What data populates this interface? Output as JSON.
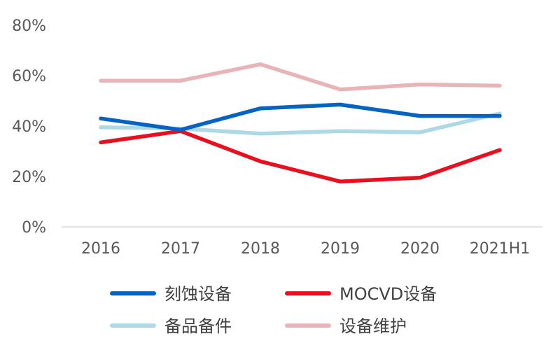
{
  "chart_data": {
    "type": "line",
    "categories": [
      "2016",
      "2017",
      "2018",
      "2019",
      "2020",
      "2021H1"
    ],
    "ylim": [
      0,
      80
    ],
    "yticks": [
      "0%",
      "20%",
      "40%",
      "60%",
      "80%"
    ],
    "y_tick_values": [
      0,
      20,
      40,
      60,
      80
    ],
    "grid": false,
    "legend_position": "bottom",
    "series": [
      {
        "name": "刻蚀设备",
        "color": "#0563C1",
        "values": [
          43,
          38.5,
          47,
          48.5,
          44,
          44
        ]
      },
      {
        "name": "MOCVD设备",
        "color": "#E8101E",
        "values": [
          33.5,
          38,
          26,
          18,
          19.5,
          30.5
        ]
      },
      {
        "name": "备品备件",
        "color": "#ADD8E6",
        "values": [
          39.5,
          39,
          37,
          38,
          37.5,
          45
        ]
      },
      {
        "name": "设备维护",
        "color": "#E8B4B8",
        "values": [
          58,
          58,
          64.5,
          54.5,
          56.5,
          56
        ]
      }
    ]
  }
}
